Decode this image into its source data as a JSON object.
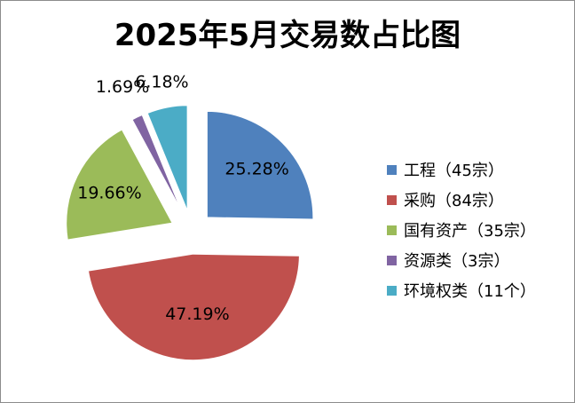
{
  "chart_data": {
    "type": "pie",
    "title": "2025年5月交易数占比图",
    "categories": [
      "工程（45宗）",
      "采购（84宗）",
      "国有资产（35宗）",
      "资源类（3宗）",
      "环境权类（11个）"
    ],
    "values": [
      25.28,
      47.19,
      19.66,
      1.69,
      6.18
    ],
    "data_labels": [
      "25.28%",
      "47.19%",
      "19.66%",
      "1.69%",
      "6.18%"
    ],
    "colors": [
      "#4f81bd",
      "#c0504d",
      "#9bbb59",
      "#8064a2",
      "#4bacc6"
    ],
    "exploded": true,
    "legend_position": "right"
  }
}
